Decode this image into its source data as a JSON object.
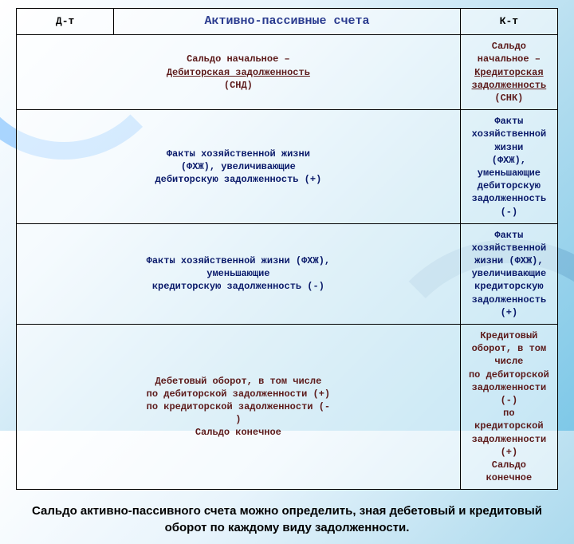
{
  "colors": {
    "bg_gradient": [
      "#ffffff",
      "#e8f4fc",
      "#b8dff0",
      "#7ec8e8"
    ],
    "border": "#000000",
    "title": "#2a3b8f",
    "dark_red": "#5c1a1a",
    "navy": "#0a1a6a"
  },
  "table": {
    "header": {
      "left": "Д-т",
      "title": "Активно-пассивные счета",
      "right": "К-т"
    },
    "rows": [
      {
        "left_lines": [
          "Сальдо начальное –",
          "Дебиторская задолженность",
          "(СНД)"
        ],
        "right_lines": [
          "Сальдо начальное –",
          "Кредиторская задолженность",
          "(СНК)"
        ],
        "left_underline_idx": 1,
        "right_underline_idx": 1,
        "color": "dark-red"
      },
      {
        "left_lines": [
          "Факты хозяйственной жизни",
          "(ФХЖ), увеличивающие",
          "дебиторскую задолженность (+)"
        ],
        "right_lines": [
          "Факты хозяйственной жизни",
          "(ФХЖ), уменьшающие",
          "дебиторскую задолженность (-)"
        ],
        "color": "navy"
      },
      {
        "left_lines": [
          "Факты хозяйственной жизни (ФХЖ),",
          "уменьшающие",
          "кредиторскую  задолженность (-)"
        ],
        "right_lines": [
          "Факты хозяйственной жизни (ФХЖ),",
          "увеличивающие",
          "кредиторскую  задолженность (+)"
        ],
        "color": "navy"
      },
      {
        "left_lines": [
          "Дебетовый оборот, в том числе",
          "по дебиторской задолженности (+)",
          "по кредиторской задолженности (-",
          ")",
          "Сальдо конечное"
        ],
        "right_lines": [
          "Кредитовый оборот, в том числе",
          "по дебиторской задолженности (-)",
          "по кредиторской задолженности",
          "(+)",
          "Сальдо конечное"
        ],
        "color": "dark-red"
      }
    ]
  },
  "caption": "Сальдо активно-пассивного счета можно определить, зная дебетовый и кредитовый оборот по каждому виду задолженности."
}
